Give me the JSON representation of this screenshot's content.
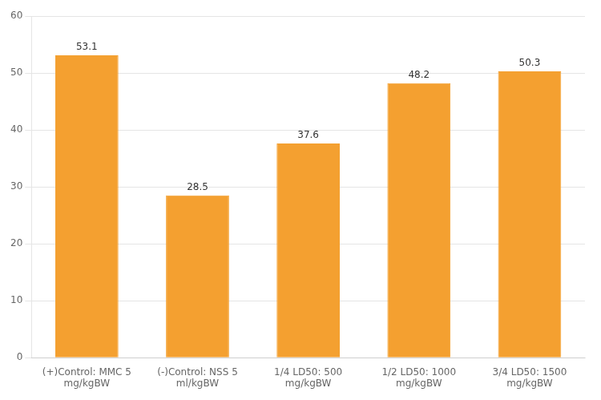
{
  "chart_data": {
    "type": "bar",
    "categories": [
      "(+)Control: MMC 5\nmg/kgBW",
      "(-)Control: NSS 5\nml/kgBW",
      "1/4 LD50: 500\nmg/kgBW",
      "1/2 LD50: 1000\nmg/kgBW",
      "3/4 LD50: 1500\nmg/kgBW"
    ],
    "values": [
      53.1,
      28.5,
      37.6,
      48.2,
      50.3
    ],
    "color": "#F4A030",
    "ylim": [
      0,
      60
    ],
    "yticks": [
      0,
      10,
      20,
      30,
      40,
      50,
      60
    ],
    "grid": true,
    "data_labels": true
  }
}
